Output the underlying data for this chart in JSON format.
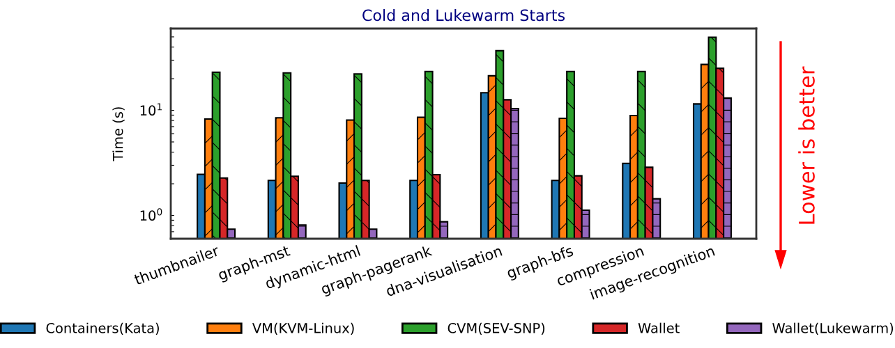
{
  "chart_data": {
    "type": "bar",
    "title": "Cold and Lukewarm Starts",
    "ylabel": "Time (s)",
    "categories": [
      "thumbnailer",
      "graph-mst",
      "dynamic-html",
      "graph-pagerank",
      "dna-visualisation",
      "graph-bfs",
      "compression",
      "image-recognition"
    ],
    "series": [
      {
        "name": "Containers(Kata)",
        "color": "#1f77b4",
        "values": [
          2.46,
          2.15,
          2.03,
          2.15,
          14.7,
          2.15,
          3.13,
          11.5
        ]
      },
      {
        "name": "VM(KVM-Linux)",
        "color": "#ff7f0e",
        "values": [
          8.27,
          8.49,
          8.07,
          8.58,
          21.3,
          8.39,
          8.93,
          27.3
        ]
      },
      {
        "name": "CVM(SEV-SNP)",
        "color": "#2ca02c",
        "values": [
          23.0,
          22.7,
          22.2,
          23.4,
          36.9,
          23.4,
          23.4,
          49.6
        ]
      },
      {
        "name": "Wallet",
        "color": "#d62728",
        "values": [
          2.27,
          2.36,
          2.15,
          2.44,
          12.6,
          2.38,
          2.87,
          25.1
        ]
      },
      {
        "name": "Wallet(Lukewarm)",
        "color": "#9467bd",
        "values": [
          0.74,
          0.81,
          0.74,
          0.87,
          10.4,
          1.12,
          1.44,
          13.1
        ]
      }
    ],
    "log": "y",
    "ylim": [
      0.6,
      60
    ],
    "yticks": [
      {
        "value": 0.6,
        "label": null
      },
      {
        "value": 0.7,
        "label": null
      },
      {
        "value": 0.8,
        "label": null
      },
      {
        "value": 0.9,
        "label": null
      },
      {
        "value": 1,
        "label": "10$^{0}$"
      },
      {
        "value": 2,
        "label": null
      },
      {
        "value": 3,
        "label": null
      },
      {
        "value": 4,
        "label": null
      },
      {
        "value": 5,
        "label": null
      },
      {
        "value": 6,
        "label": null
      },
      {
        "value": 7,
        "label": null
      },
      {
        "value": 8,
        "label": null
      },
      {
        "value": 9,
        "label": null
      },
      {
        "value": 10,
        "label": "10$^{1}$"
      },
      {
        "value": 20,
        "label": null
      },
      {
        "value": 30,
        "label": null
      },
      {
        "value": 40,
        "label": null
      },
      {
        "value": 50,
        "label": null
      },
      {
        "value": 60,
        "label": null
      }
    ],
    "grid": false,
    "legend": "bottom",
    "annotations": [
      "Lower is better"
    ]
  }
}
